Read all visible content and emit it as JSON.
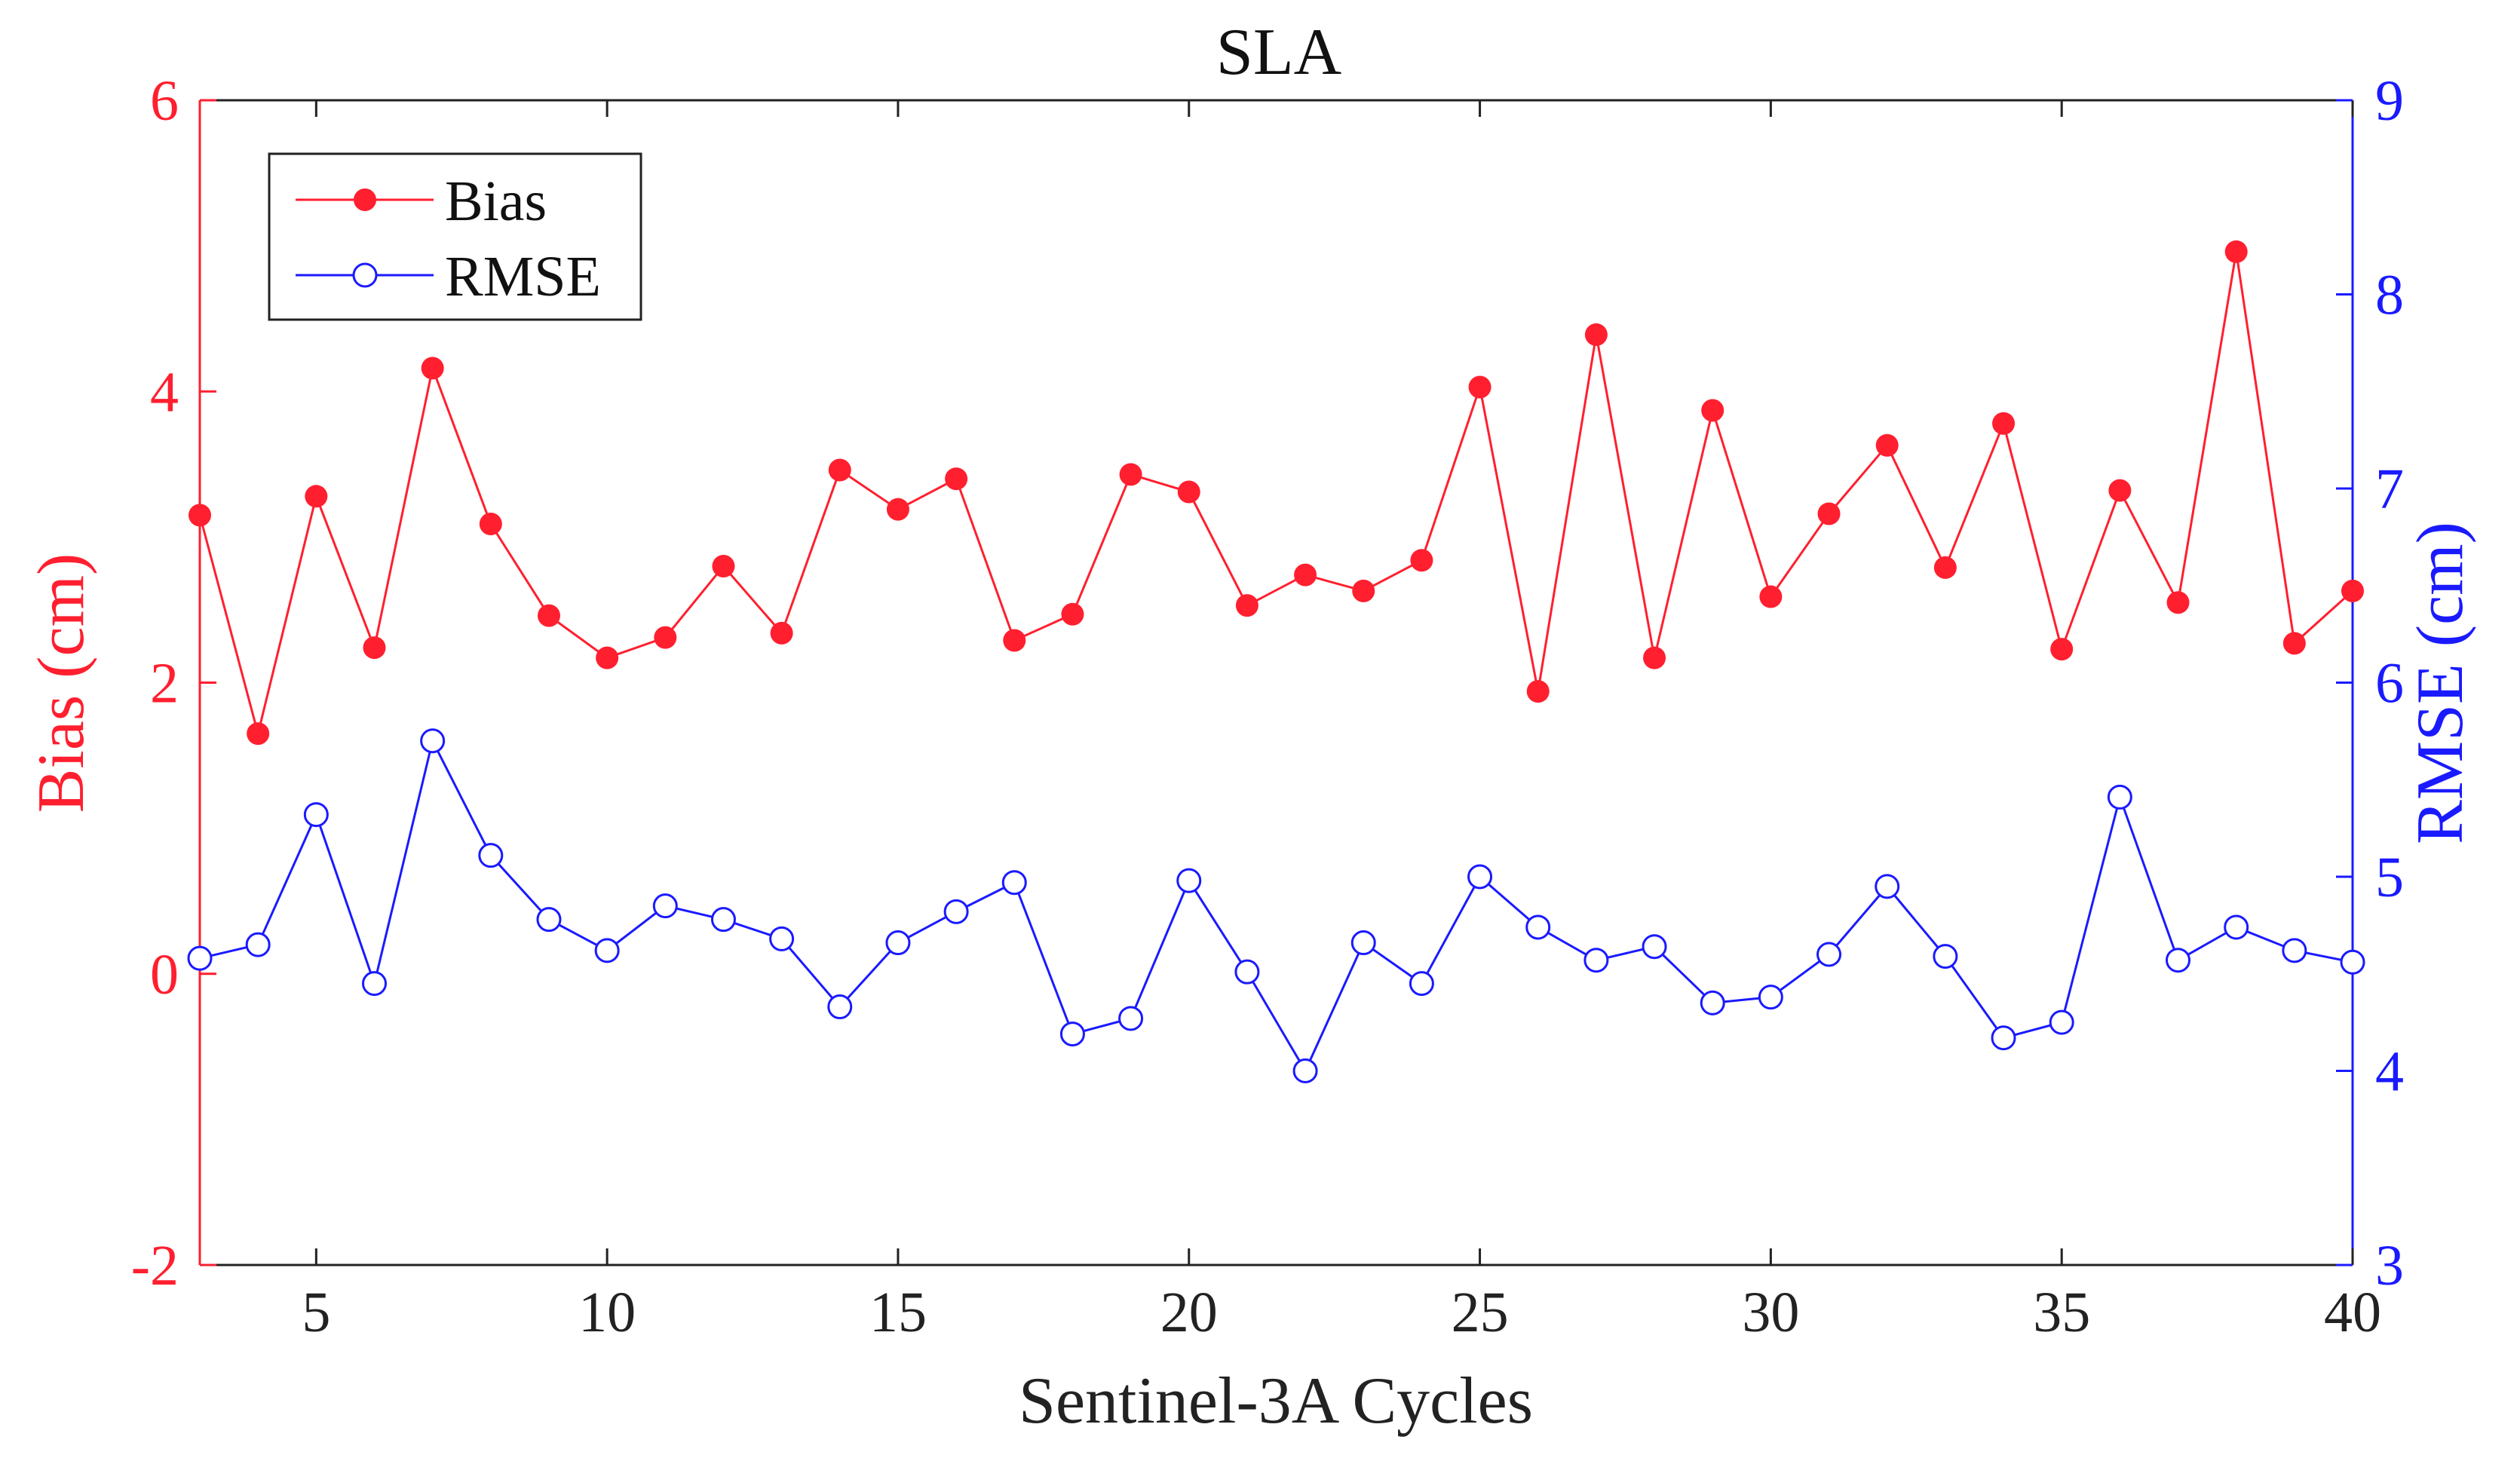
{
  "chart_data": {
    "type": "line",
    "title": "SLA",
    "xlabel": "Sentinel-3A Cycles",
    "ylabel_left": "Bias (cm)",
    "ylabel_right": "RMSE (cm)",
    "xlim": [
      3,
      40
    ],
    "ylim_left": [
      -2,
      6
    ],
    "ylim_right": [
      3,
      9
    ],
    "x_ticks": [
      5,
      10,
      15,
      20,
      25,
      30,
      35,
      40
    ],
    "y_ticks_left": [
      -2,
      0,
      2,
      4,
      6
    ],
    "y_ticks_right": [
      3,
      4,
      5,
      6,
      7,
      8,
      9
    ],
    "legend_position": "top-left",
    "colors": {
      "bias": "#ff1f2f",
      "rmse": "#1a1aff",
      "axis": "#222222"
    },
    "x": [
      3,
      4,
      5,
      6,
      7,
      8,
      9,
      10,
      11,
      12,
      13,
      14,
      15,
      16,
      17,
      18,
      19,
      20,
      21,
      22,
      23,
      24,
      25,
      26,
      27,
      28,
      29,
      30,
      31,
      32,
      33,
      34,
      35,
      36,
      37,
      38,
      39,
      40
    ],
    "series": [
      {
        "name": "Bias",
        "axis": "left",
        "marker": "filled-circle",
        "values": [
          3.15,
          1.65,
          3.28,
          2.24,
          4.16,
          3.09,
          2.46,
          2.17,
          2.31,
          2.8,
          2.34,
          3.46,
          3.19,
          3.4,
          2.29,
          2.47,
          3.43,
          3.31,
          2.53,
          2.74,
          2.63,
          2.84,
          4.03,
          1.94,
          4.39,
          2.17,
          3.87,
          2.59,
          3.16,
          3.63,
          2.79,
          3.78,
          2.23,
          3.32,
          2.55,
          4.96,
          2.27,
          2.63
        ]
      },
      {
        "name": "RMSE",
        "axis": "right",
        "marker": "open-circle",
        "values": [
          4.58,
          4.65,
          5.32,
          4.45,
          5.7,
          5.11,
          4.78,
          4.62,
          4.85,
          4.78,
          4.68,
          4.33,
          4.66,
          4.82,
          4.97,
          4.19,
          4.27,
          4.98,
          4.51,
          4.0,
          4.66,
          4.45,
          5.0,
          4.74,
          4.57,
          4.64,
          4.35,
          4.38,
          4.6,
          4.95,
          4.59,
          4.17,
          4.25,
          5.41,
          4.57,
          4.74,
          4.62,
          4.56
        ]
      }
    ]
  }
}
